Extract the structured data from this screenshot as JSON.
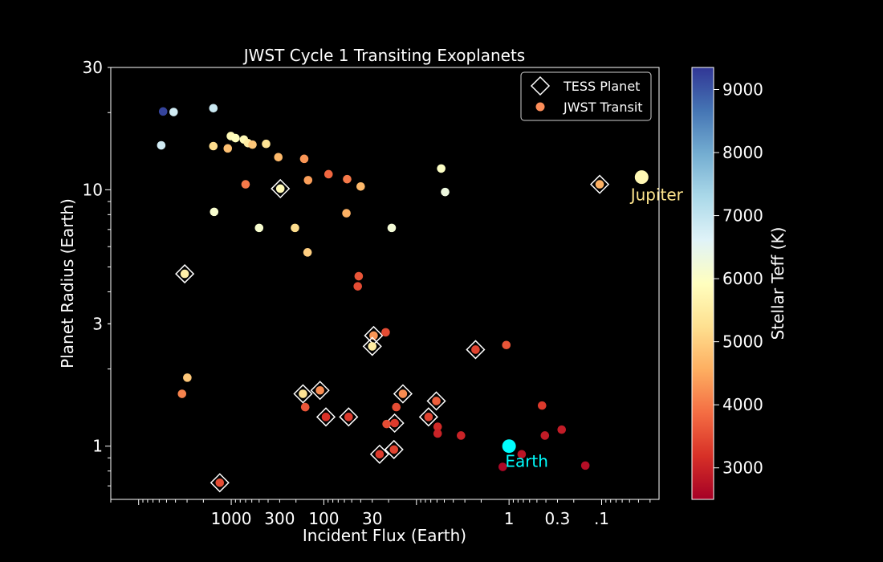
{
  "chart_data": {
    "type": "scatter",
    "title": "JWST Cycle 1 Transiting Exoplanets",
    "xlabel": "Incident Flux (Earth)",
    "ylabel": "Planet Radius (Earth)",
    "x_scale": "log",
    "x_reversed": true,
    "y_scale": "log",
    "xlim": [
      20000,
      0.024
    ],
    "ylim": [
      0.62,
      30
    ],
    "x_ticks": [
      {
        "value": 1000,
        "label": "1000"
      },
      {
        "value": 300,
        "label": "300"
      },
      {
        "value": 100,
        "label": "100"
      },
      {
        "value": 30,
        "label": "30"
      },
      {
        "value": 1,
        "label": "1"
      },
      {
        "value": 0.3,
        "label": "0.3"
      },
      {
        "value": 0.1,
        "label": ".1"
      }
    ],
    "y_ticks": [
      {
        "value": 1,
        "label": "1"
      },
      {
        "value": 3,
        "label": "3"
      },
      {
        "value": 10,
        "label": "10"
      },
      {
        "value": 30,
        "label": "30"
      }
    ],
    "legend": {
      "position": "top-right",
      "entries": [
        {
          "label": "TESS Planet",
          "marker": "diamond-outline"
        },
        {
          "label": "JWST Transit",
          "marker": "circle",
          "color": "#fc8d59"
        }
      ]
    },
    "colorbar": {
      "label": "Stellar Teff (K)",
      "range": [
        2500,
        9350
      ],
      "ticks": [
        {
          "value": 3000,
          "label": "3000"
        },
        {
          "value": 4000,
          "label": "4000"
        },
        {
          "value": 5000,
          "label": "5000"
        },
        {
          "value": 6000,
          "label": "6000"
        },
        {
          "value": 7000,
          "label": "7000"
        },
        {
          "value": 8000,
          "label": "8000"
        },
        {
          "value": 9000,
          "label": "9000"
        }
      ],
      "colormap": "RdYlBu"
    },
    "annotations": [
      {
        "label": "Jupiter",
        "flux": 0.037,
        "radius": 11.2,
        "teff": 5770,
        "text_color": "#fde48c"
      },
      {
        "label": "Earth",
        "flux": 1.0,
        "radius": 1.0,
        "teff": 5770,
        "marker_color": "#00ffff",
        "text_color": "#00ffff"
      }
    ],
    "series": [
      {
        "name": "JWST Transit",
        "points": [
          {
            "flux": 5440,
            "radius": 20.2,
            "teff": 9200,
            "tess": false
          },
          {
            "flux": 4190,
            "radius": 20.1,
            "teff": 6800,
            "tess": false
          },
          {
            "flux": 5700,
            "radius": 14.9,
            "teff": 6800,
            "tess": false
          },
          {
            "flux": 1560,
            "radius": 20.8,
            "teff": 6900,
            "tess": false
          },
          {
            "flux": 1010,
            "radius": 16.2,
            "teff": 5800,
            "tess": false
          },
          {
            "flux": 900,
            "radius": 15.9,
            "teff": 5900,
            "tess": false
          },
          {
            "flux": 1560,
            "radius": 14.8,
            "teff": 5200,
            "tess": false
          },
          {
            "flux": 1090,
            "radius": 14.5,
            "teff": 4800,
            "tess": false
          },
          {
            "flux": 730,
            "radius": 15.7,
            "teff": 5800,
            "tess": false
          },
          {
            "flux": 660,
            "radius": 15.2,
            "teff": 5500,
            "tess": false
          },
          {
            "flux": 590,
            "radius": 15.0,
            "teff": 4900,
            "tess": false
          },
          {
            "flux": 420,
            "radius": 15.1,
            "teff": 5300,
            "tess": false
          },
          {
            "flux": 310,
            "radius": 13.4,
            "teff": 4700,
            "tess": false
          },
          {
            "flux": 163,
            "radius": 13.2,
            "teff": 4300,
            "tess": false
          },
          {
            "flux": 148,
            "radius": 10.9,
            "teff": 4400,
            "tess": false
          },
          {
            "flux": 89,
            "radius": 11.5,
            "teff": 3800,
            "tess": false
          },
          {
            "flux": 56,
            "radius": 11.0,
            "teff": 4000,
            "tess": false
          },
          {
            "flux": 40,
            "radius": 10.3,
            "teff": 4700,
            "tess": false
          },
          {
            "flux": 700,
            "radius": 10.5,
            "teff": 4000,
            "tess": false
          },
          {
            "flux": 295,
            "radius": 10.1,
            "teff": 5800,
            "tess": true
          },
          {
            "flux": 1530,
            "radius": 8.2,
            "teff": 6100,
            "tess": false
          },
          {
            "flux": 500,
            "radius": 7.1,
            "teff": 6100,
            "tess": false
          },
          {
            "flux": 205,
            "radius": 7.1,
            "teff": 5200,
            "tess": false
          },
          {
            "flux": 150,
            "radius": 5.7,
            "teff": 5000,
            "tess": false
          },
          {
            "flux": 57,
            "radius": 8.1,
            "teff": 4600,
            "tess": false
          },
          {
            "flux": 18.5,
            "radius": 7.1,
            "teff": 6200,
            "tess": false
          },
          {
            "flux": 5.4,
            "radius": 12.1,
            "teff": 6000,
            "tess": false
          },
          {
            "flux": 4.9,
            "radius": 9.8,
            "teff": 6300,
            "tess": false
          },
          {
            "flux": 0.105,
            "radius": 10.5,
            "teff": 4600,
            "tess": true
          },
          {
            "flux": 3180,
            "radius": 4.7,
            "teff": 5600,
            "tess": true
          },
          {
            "flux": 42,
            "radius": 4.6,
            "teff": 3600,
            "tess": false
          },
          {
            "flux": 43,
            "radius": 4.2,
            "teff": 3500,
            "tess": false
          },
          {
            "flux": 29,
            "radius": 2.7,
            "teff": 4300,
            "tess": true
          },
          {
            "flux": 21.5,
            "radius": 2.78,
            "teff": 3500,
            "tess": false
          },
          {
            "flux": 30,
            "radius": 2.45,
            "teff": 5500,
            "tess": true
          },
          {
            "flux": 2.3,
            "radius": 2.38,
            "teff": 3400,
            "tess": true
          },
          {
            "flux": 1.07,
            "radius": 2.48,
            "teff": 3600,
            "tess": false
          },
          {
            "flux": 2980,
            "radius": 1.85,
            "teff": 4900,
            "tess": false
          },
          {
            "flux": 3400,
            "radius": 1.6,
            "teff": 4100,
            "tess": false
          },
          {
            "flux": 168,
            "radius": 1.6,
            "teff": 5300,
            "tess": true
          },
          {
            "flux": 110,
            "radius": 1.65,
            "teff": 4200,
            "tess": true
          },
          {
            "flux": 14,
            "radius": 1.6,
            "teff": 4200,
            "tess": true
          },
          {
            "flux": 6.1,
            "radius": 1.5,
            "teff": 3700,
            "tess": true
          },
          {
            "flux": 159,
            "radius": 1.42,
            "teff": 3600,
            "tess": false
          },
          {
            "flux": 95,
            "radius": 1.3,
            "teff": 3200,
            "tess": true
          },
          {
            "flux": 54,
            "radius": 1.3,
            "teff": 3300,
            "tess": true
          },
          {
            "flux": 7.4,
            "radius": 1.3,
            "teff": 3400,
            "tess": true
          },
          {
            "flux": 16.5,
            "radius": 1.42,
            "teff": 3500,
            "tess": false
          },
          {
            "flux": 17.2,
            "radius": 1.23,
            "teff": 3300,
            "tess": true
          },
          {
            "flux": 21,
            "radius": 1.22,
            "teff": 3500,
            "tess": false
          },
          {
            "flux": 5.9,
            "radius": 1.19,
            "teff": 3100,
            "tess": false
          },
          {
            "flux": 5.9,
            "radius": 1.12,
            "teff": 3000,
            "tess": false
          },
          {
            "flux": 3.3,
            "radius": 1.1,
            "teff": 3000,
            "tess": false
          },
          {
            "flux": 25,
            "radius": 0.93,
            "teff": 3300,
            "tess": true
          },
          {
            "flux": 17.5,
            "radius": 0.97,
            "teff": 3400,
            "tess": true
          },
          {
            "flux": 0.73,
            "radius": 0.93,
            "teff": 2800,
            "tess": false
          },
          {
            "flux": 0.41,
            "radius": 1.1,
            "teff": 2900,
            "tess": false
          },
          {
            "flux": 0.44,
            "radius": 1.44,
            "teff": 3300,
            "tess": false
          },
          {
            "flux": 0.27,
            "radius": 1.16,
            "teff": 2900,
            "tess": false
          },
          {
            "flux": 1.17,
            "radius": 0.83,
            "teff": 2600,
            "tess": false
          },
          {
            "flux": 0.15,
            "radius": 0.84,
            "teff": 2700,
            "tess": false
          },
          {
            "flux": 1330,
            "radius": 0.72,
            "teff": 3500,
            "tess": true
          }
        ]
      }
    ]
  }
}
